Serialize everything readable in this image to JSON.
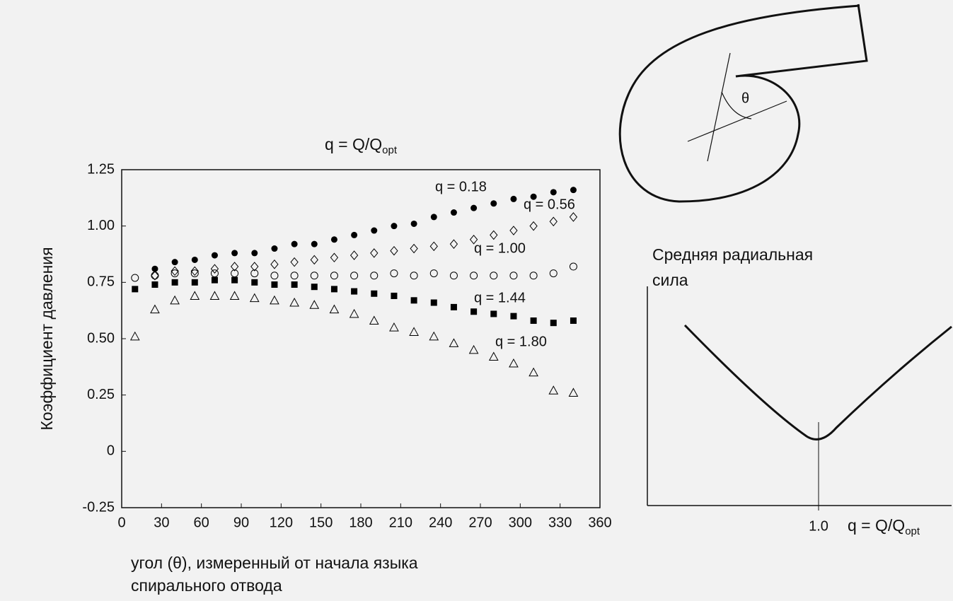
{
  "chart_data": {
    "type": "scatter",
    "title": [
      "q = Q/Q",
      "opt"
    ],
    "y_label": "Коэффициент давления",
    "x_label": [
      "угол (θ), измеренный от начала языка",
      "спирального отвода"
    ],
    "xlim": [
      0,
      360
    ],
    "xticks": [
      0,
      30,
      60,
      90,
      120,
      150,
      180,
      210,
      240,
      270,
      300,
      330,
      360
    ],
    "ylim": [
      -0.25,
      1.25
    ],
    "yticks": [
      1.25,
      {
        "value": 1,
        "label": "1.00"
      },
      0.75,
      {
        "value": 0.5,
        "label": "0.50"
      },
      0.25,
      0,
      -0.25
    ],
    "series": [
      {
        "name": "q = 0.18",
        "color": "#000",
        "marker": "filled-circle",
        "x": [
          25,
          40,
          55,
          70,
          85,
          100,
          115,
          130,
          145,
          160,
          175,
          190,
          205,
          220,
          235,
          250,
          265,
          280,
          295,
          310,
          325,
          340
        ],
        "values": [
          0.81,
          0.84,
          0.85,
          0.87,
          0.88,
          0.88,
          0.9,
          0.92,
          0.92,
          0.94,
          0.96,
          0.98,
          1.0,
          1.01,
          1.04,
          1.06,
          1.08,
          1.1,
          1.12,
          1.13,
          1.15,
          1.16
        ]
      },
      {
        "name": "q = 0.56",
        "color": "#000",
        "marker": "open-diamond",
        "x": [
          25,
          40,
          55,
          70,
          85,
          100,
          115,
          130,
          145,
          160,
          175,
          190,
          205,
          220,
          235,
          250,
          265,
          280,
          295,
          310,
          325,
          340
        ],
        "values": [
          0.78,
          0.8,
          0.8,
          0.81,
          0.82,
          0.82,
          0.83,
          0.84,
          0.85,
          0.86,
          0.87,
          0.88,
          0.89,
          0.9,
          0.91,
          0.92,
          0.94,
          0.96,
          0.98,
          1.0,
          1.02,
          1.04
        ]
      },
      {
        "name": "q = 1.00",
        "color": "#000",
        "marker": "open-circle",
        "x": [
          10,
          25,
          40,
          55,
          70,
          85,
          100,
          115,
          130,
          145,
          160,
          175,
          190,
          205,
          220,
          235,
          250,
          265,
          280,
          295,
          310,
          325,
          340
        ],
        "values": [
          0.77,
          0.78,
          0.79,
          0.79,
          0.79,
          0.79,
          0.79,
          0.78,
          0.78,
          0.78,
          0.78,
          0.78,
          0.78,
          0.79,
          0.78,
          0.79,
          0.78,
          0.78,
          0.78,
          0.78,
          0.78,
          0.79,
          0.82
        ]
      },
      {
        "name": "q = 1.44",
        "color": "#000",
        "marker": "filled-square",
        "x": [
          10,
          25,
          40,
          55,
          70,
          85,
          100,
          115,
          130,
          145,
          160,
          175,
          190,
          205,
          220,
          235,
          250,
          265,
          280,
          295,
          310,
          325,
          340
        ],
        "values": [
          0.72,
          0.74,
          0.75,
          0.75,
          0.76,
          0.76,
          0.75,
          0.74,
          0.74,
          0.73,
          0.72,
          0.71,
          0.7,
          0.69,
          0.67,
          0.66,
          0.64,
          0.62,
          0.61,
          0.6,
          0.58,
          0.57,
          0.58
        ]
      },
      {
        "name": "q = 1.80",
        "color": "#000",
        "marker": "open-triangle",
        "x": [
          10,
          25,
          40,
          55,
          70,
          85,
          100,
          115,
          130,
          145,
          160,
          175,
          190,
          205,
          220,
          235,
          250,
          265,
          280,
          295,
          310,
          325,
          340
        ],
        "values": [
          0.51,
          0.63,
          0.67,
          0.69,
          0.69,
          0.69,
          0.68,
          0.67,
          0.66,
          0.65,
          0.63,
          0.61,
          0.58,
          0.55,
          0.53,
          0.51,
          0.48,
          0.45,
          0.42,
          0.39,
          0.35,
          0.27,
          0.26
        ]
      }
    ]
  },
  "diagrams": {
    "volute_angle": "θ",
    "force_title": [
      "Средняя радиальная",
      "сила"
    ],
    "force_x_tick": "1.0",
    "force_x_label": [
      "q = Q/Q",
      "opt"
    ]
  }
}
